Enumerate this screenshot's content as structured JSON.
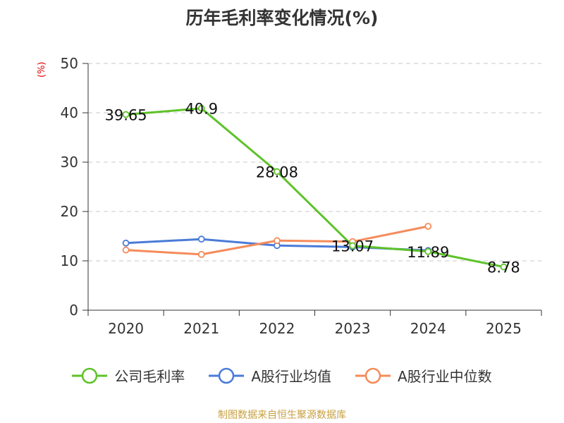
{
  "chart_data": {
    "type": "line",
    "title": "历年毛利率变化情况(%)",
    "ylabel": "(%)",
    "xlabel": "",
    "categories": [
      "2020",
      "2021",
      "2022",
      "2023",
      "2024",
      "2025"
    ],
    "ylim": [
      0,
      50
    ],
    "yticks": [
      0,
      10,
      20,
      30,
      40,
      50
    ],
    "grid": true,
    "legend": "bottom",
    "series": [
      {
        "name": "公司毛利率",
        "color": "#5ec229",
        "values": [
          39.65,
          40.9,
          28.08,
          13.07,
          11.89,
          8.78
        ],
        "labels": [
          "39.65",
          "40.9",
          "28.08",
          "13.07",
          "11.89",
          "8.78"
        ]
      },
      {
        "name": "A股行业均值",
        "color": "#4a7bd8",
        "values": [
          13.6,
          14.4,
          13.1,
          12.8,
          12.1,
          null
        ]
      },
      {
        "name": "A股行业中位数",
        "color": "#f58b5a",
        "values": [
          12.2,
          11.3,
          14.1,
          13.9,
          17.0,
          null
        ]
      }
    ]
  },
  "footer": {
    "source": "制图数据来自恒生聚源数据库"
  }
}
